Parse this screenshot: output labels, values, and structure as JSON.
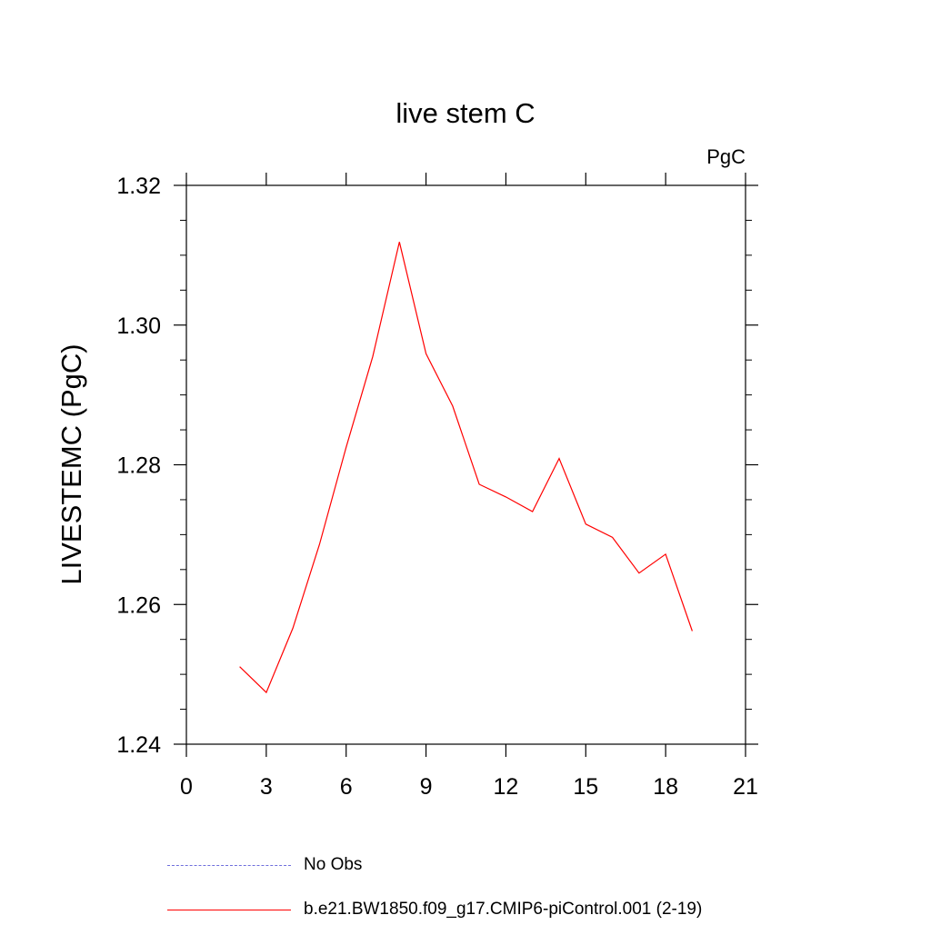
{
  "chart_data": {
    "type": "line",
    "title": "live stem C",
    "units_label": "PgC",
    "ylabel": "LIVESTEMC  (PgC)",
    "xlabel": "",
    "xlim": [
      0,
      21
    ],
    "ylim": [
      1.24,
      1.32
    ],
    "x_ticks": [
      0,
      3,
      6,
      9,
      12,
      15,
      18,
      21
    ],
    "x_tick_labels": [
      "0",
      "3",
      "6",
      "9",
      "12",
      "15",
      "18",
      "21"
    ],
    "y_ticks": [
      1.24,
      1.26,
      1.28,
      1.3,
      1.32
    ],
    "y_tick_labels": [
      "1.24",
      "1.26",
      "1.28",
      "1.30",
      "1.32"
    ],
    "grid": false,
    "legend_position": "bottom",
    "series": [
      {
        "name": "b.e21.BW1850.f09_g17.CMIP6-piControl.001 (2-19)",
        "color": "#ff0000",
        "style": "solid",
        "x": [
          2,
          3,
          4,
          5,
          6,
          7,
          8,
          9,
          10,
          11,
          12,
          13,
          14,
          15,
          16,
          17,
          18,
          19
        ],
        "y": [
          1.2511,
          1.2474,
          1.2566,
          1.2686,
          1.2825,
          1.2955,
          1.3119,
          1.2959,
          1.2884,
          1.2772,
          1.2754,
          1.2733,
          1.2809,
          1.2715,
          1.2696,
          1.2645,
          1.2672,
          1.2562
        ]
      }
    ],
    "legend": [
      {
        "label": "No Obs",
        "color": "#6e6edc",
        "style": "dashed"
      },
      {
        "label": "b.e21.BW1850.f09_g17.CMIP6-piControl.001 (2-19)",
        "color": "#ff0000",
        "style": "solid"
      }
    ]
  }
}
